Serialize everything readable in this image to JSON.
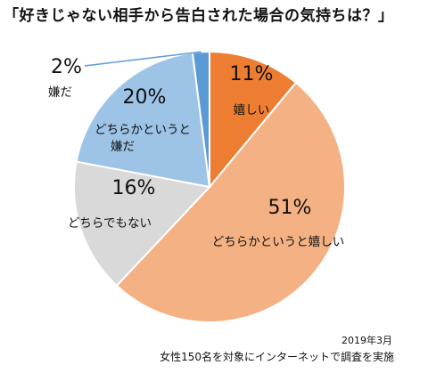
{
  "chart_data": {
    "type": "pie",
    "title": "「好きじゃない相手から告白された場合の気持ちは？」",
    "start_angle_deg": 0,
    "direction": "clockwise",
    "slices": [
      {
        "pct_label": "11%",
        "value": 11,
        "label_lines": [
          "嬉しい"
        ],
        "color": "#ed7d31"
      },
      {
        "pct_label": "51%",
        "value": 51,
        "label_lines": [
          "どちらかというと嬉しい"
        ],
        "color": "#f4b183"
      },
      {
        "pct_label": "16%",
        "value": 16,
        "label_lines": [
          "どちらでもない"
        ],
        "color": "#d9d9d9"
      },
      {
        "pct_label": "20%",
        "value": 20,
        "label_lines": [
          "どちらかというと",
          "嫌だ"
        ],
        "color": "#9dc3e6"
      },
      {
        "pct_label": "2%",
        "value": 2,
        "label_lines": [
          "嫌だ"
        ],
        "color": "#5b9bd5"
      }
    ]
  },
  "footer": {
    "date": "2019年3月",
    "note": "女性150名を対象にインターネットで調査を実施"
  }
}
